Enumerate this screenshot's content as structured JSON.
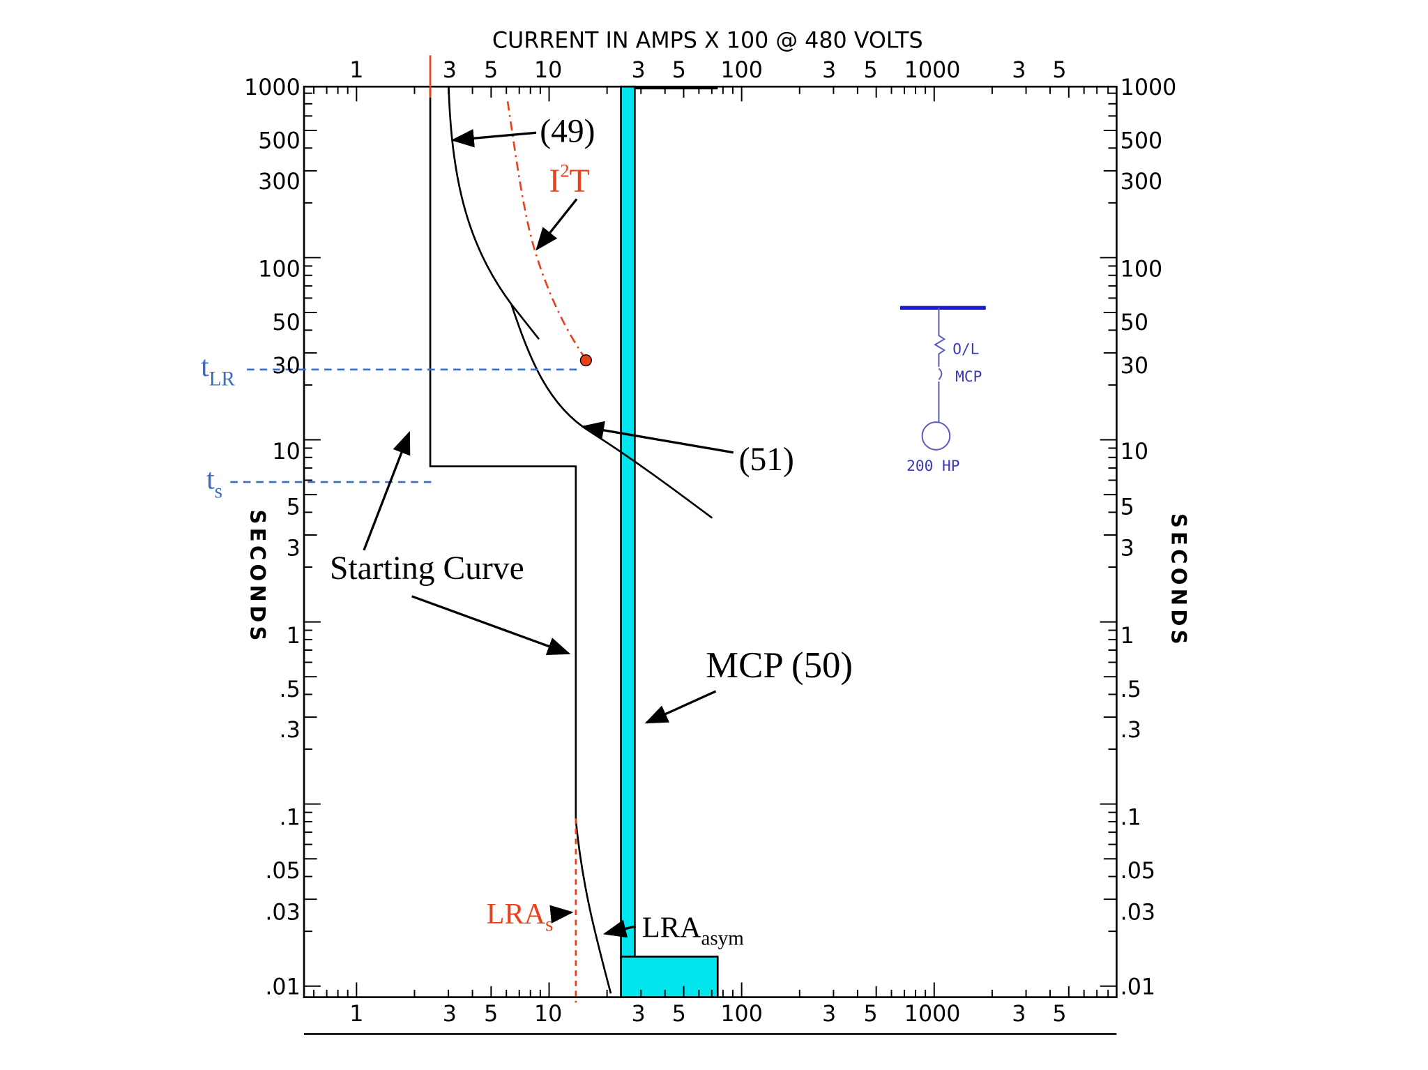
{
  "header": {
    "title": "CURRENT IN AMPS  X 100  @  480  VOLTS"
  },
  "x_tick_labels": [
    "1",
    "3",
    "5",
    "10",
    "3",
    "5",
    "100",
    "3",
    "5",
    "1000",
    "3",
    "5"
  ],
  "y_tick_labels": [
    "1000",
    "500",
    "300",
    "100",
    "50",
    "30",
    "10",
    "5",
    "3",
    "1",
    ".5",
    ".3",
    ".1",
    ".05",
    ".03",
    ".01"
  ],
  "y_axis_label": "SECONDS",
  "annotations": {
    "relay_49": "(49)",
    "i2t_base": "I",
    "i2t_sup": "2",
    "i2t_tail": "T",
    "relay_51": "(51)",
    "starting_curve": "Starting Curve",
    "mcp": "MCP (50)",
    "lra_s_base": "LRA",
    "lra_s_sub": "s",
    "lra_asym_base": "LRA",
    "lra_asym_sub": "asym",
    "tlr_base": "t",
    "tlr_sub": "LR",
    "ts_base": "t",
    "ts_sub": "s"
  },
  "one_line": {
    "overload": "O/L",
    "breaker": "MCP",
    "motor": "200 HP"
  }
}
